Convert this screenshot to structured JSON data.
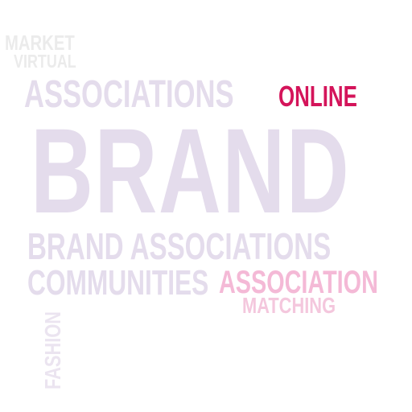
{
  "words": {
    "market": "MARKET",
    "virtual": "VIRTUAL",
    "associations_top": "ASSOCIATIONS",
    "online": "ONLINE",
    "brand": "BRAND",
    "brand_associations": "BRAND ASSOCIATIONS",
    "communities": "COMMUNITIES",
    "association": "ASSOCIATION",
    "matching": "MATCHING",
    "fashion": "FASHION"
  },
  "colors": {
    "background": "#ffffff",
    "primary_light": "#e4dcec",
    "faint_gray": "#ebebeb",
    "accent_magenta": "#d4145a",
    "pink_light": "#f4b9d6",
    "pink_lighter": "#f4c7dd"
  }
}
